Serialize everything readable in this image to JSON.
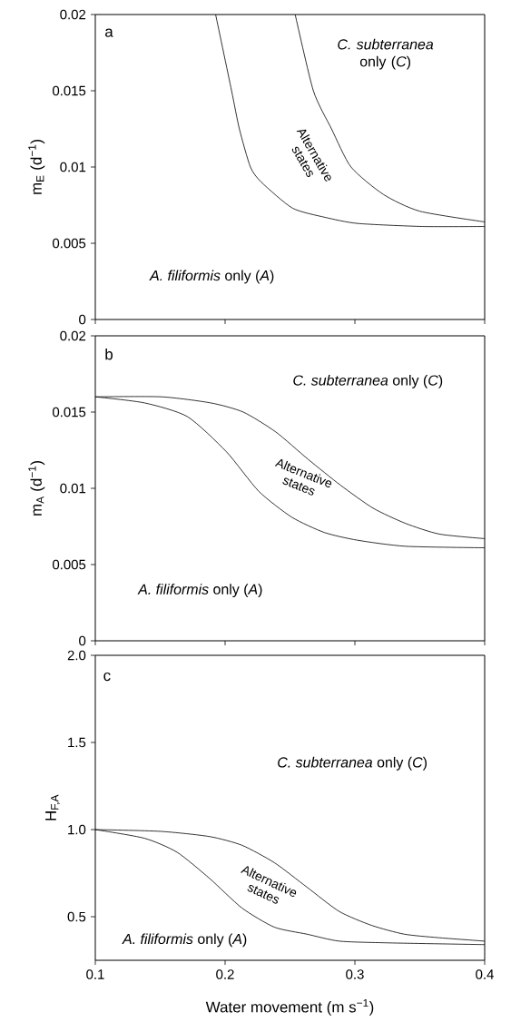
{
  "chart_data": [
    {
      "type": "line",
      "ylabel": "m$_{E}$ (d$^{−1}$)",
      "xlim": [
        0.1,
        0.4
      ],
      "ylim": [
        0,
        0.02
      ],
      "xticks": [
        0.1,
        0.2,
        0.3,
        0.4
      ],
      "yticks": [
        0,
        0.005,
        0.01,
        0.015,
        0.02
      ],
      "tick_labels": "y",
      "annotations": [
        "a",
        "*C. subterranea* only (*C*)",
        "*A. filiformis* only (*A*)",
        "Alternative states"
      ],
      "series": [
        {
          "color": "#000000",
          "x": [
            0.1927,
            0.205,
            0.211,
            0.2195,
            0.228,
            0.252,
            0.277,
            0.302,
            0.352,
            0.4
          ],
          "values": [
            0.02,
            0.015,
            0.0125,
            0.01,
            0.009,
            0.0073,
            0.0067,
            0.0063,
            0.0061,
            0.0061
          ]
        },
        {
          "color": "#000000",
          "x": [
            0.254,
            0.268,
            0.282,
            0.297,
            0.322,
            0.35,
            0.4
          ],
          "values": [
            0.02,
            0.015,
            0.0125,
            0.01,
            0.0082,
            0.0071,
            0.0064
          ]
        }
      ]
    },
    {
      "type": "line",
      "ylabel": "m$_{A}$ (d$^{−1}$)",
      "xlim": [
        0.1,
        0.4
      ],
      "ylim": [
        0,
        0.02
      ],
      "xticks": [
        0.1,
        0.2,
        0.3,
        0.4
      ],
      "yticks": [
        0,
        0.005,
        0.01,
        0.015,
        0.02
      ],
      "tick_labels": "y",
      "annotations": [
        "b",
        "*C. subterranea* only (*C*)",
        "*A. filiformis* only (*A*)",
        "Alternative states"
      ],
      "series": [
        {
          "color": "#000000",
          "x": [
            0.1,
            0.138,
            0.171,
            0.201,
            0.226,
            0.2515,
            0.2766,
            0.3018,
            0.339,
            0.4
          ],
          "values": [
            0.016,
            0.0156,
            0.0147,
            0.0124,
            0.0098,
            0.0081,
            0.0071,
            0.0066,
            0.0062,
            0.0061
          ]
        },
        {
          "color": "#000000",
          "x": [
            0.1,
            0.151,
            0.189,
            0.214,
            0.239,
            0.264,
            0.289,
            0.314,
            0.339,
            0.365,
            0.4
          ],
          "values": [
            0.016,
            0.016,
            0.0156,
            0.015,
            0.0137,
            0.0119,
            0.0102,
            0.0087,
            0.0077,
            0.007,
            0.0067
          ]
        }
      ]
    },
    {
      "type": "line",
      "xlabel": "Water movement (m s$^{−1}$)",
      "ylabel": "H$_{F,A}$",
      "xlim": [
        0.1,
        0.4
      ],
      "ylim": [
        0.25,
        2.0
      ],
      "xticks": [
        0.1,
        0.2,
        0.3,
        0.4
      ],
      "yticks": [
        {
          "value": 0.5,
          "label": "0.5"
        },
        {
          "value": 1.0,
          "label": "1.0"
        },
        {
          "value": 1.5,
          "label": "1.5"
        },
        {
          "value": 2.0,
          "label": "2.0"
        }
      ],
      "annotations": [
        "c",
        "*C. subterranea* only (*C*)",
        "*A. filiformis* only (*A*)",
        "Alternative states"
      ],
      "series": [
        {
          "color": "#000000",
          "x": [
            0.1,
            0.138,
            0.163,
            0.188,
            0.213,
            0.238,
            0.263,
            0.288,
            0.326,
            0.4
          ],
          "values": [
            1.0,
            0.95,
            0.87,
            0.72,
            0.55,
            0.44,
            0.4,
            0.36,
            0.35,
            0.34
          ]
        },
        {
          "color": "#000000",
          "x": [
            0.1,
            0.15,
            0.188,
            0.213,
            0.238,
            0.263,
            0.288,
            0.313,
            0.338,
            0.364,
            0.4
          ],
          "values": [
            1.0,
            0.99,
            0.96,
            0.91,
            0.81,
            0.67,
            0.53,
            0.45,
            0.4,
            0.38,
            0.36
          ]
        }
      ]
    }
  ]
}
